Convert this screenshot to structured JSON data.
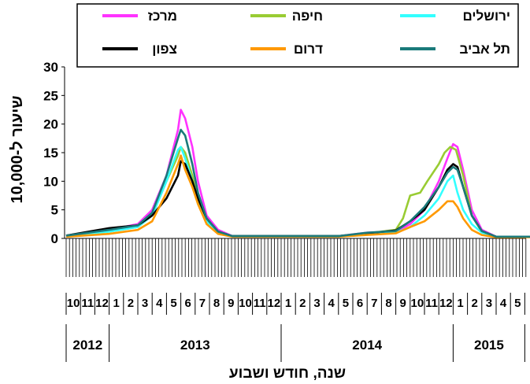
{
  "chart_data": {
    "type": "line",
    "xlabel": "שנה, חודש ושבוע",
    "ylabel": "שיעור ל-10,000",
    "ylim": [
      0,
      30
    ],
    "yticks": [
      0,
      5,
      10,
      15,
      20,
      25,
      30
    ],
    "grid": false,
    "legend_position": "top",
    "months": [
      "10",
      "11",
      "12",
      "1",
      "2",
      "3",
      "4",
      "5",
      "6",
      "7",
      "8",
      "9",
      "10",
      "11",
      "12",
      "1",
      "2",
      "3",
      "4",
      "5",
      "6",
      "7",
      "8",
      "9",
      "10",
      "11",
      "12",
      "1",
      "2",
      "3",
      "4",
      "5"
    ],
    "years": [
      {
        "label": "2012",
        "from_month": 0,
        "to_month": 2
      },
      {
        "label": "2013",
        "from_month": 3,
        "to_month": 14
      },
      {
        "label": "2014",
        "from_month": 15,
        "to_month": 26
      },
      {
        "label": "2015",
        "from_month": 27,
        "to_month": 31
      }
    ],
    "series": [
      {
        "name": "מרכז",
        "color": "#ff33ff",
        "points": [
          [
            0,
            0.5
          ],
          [
            3,
            1.5
          ],
          [
            5,
            2.5
          ],
          [
            6,
            5
          ],
          [
            7,
            11
          ],
          [
            7.8,
            19
          ],
          [
            8,
            22.5
          ],
          [
            8.3,
            21
          ],
          [
            8.8,
            16
          ],
          [
            9.2,
            10
          ],
          [
            9.8,
            4
          ],
          [
            10.6,
            1.5
          ],
          [
            11.6,
            0.4
          ],
          [
            14,
            0.4
          ],
          [
            19,
            0.4
          ],
          [
            21,
            1
          ],
          [
            23,
            1.2
          ],
          [
            24,
            2.5
          ],
          [
            25,
            5
          ],
          [
            26,
            10
          ],
          [
            26.6,
            14
          ],
          [
            27,
            16.5
          ],
          [
            27.3,
            16
          ],
          [
            27.7,
            12
          ],
          [
            28.3,
            5
          ],
          [
            29,
            1.5
          ],
          [
            30,
            0.3
          ],
          [
            37,
            0.3
          ],
          [
            40,
            1.5
          ],
          [
            42,
            2.2
          ],
          [
            43,
            3
          ],
          [
            44,
            5
          ],
          [
            44.5,
            7
          ]
        ]
      },
      {
        "name": "חיפה",
        "color": "#99cc33",
        "points": [
          [
            0,
            0.5
          ],
          [
            3,
            1.2
          ],
          [
            5,
            2
          ],
          [
            6,
            4
          ],
          [
            7,
            10
          ],
          [
            7.8,
            14.5
          ],
          [
            8,
            16
          ],
          [
            8.3,
            15
          ],
          [
            8.8,
            11
          ],
          [
            9.2,
            7
          ],
          [
            9.8,
            3
          ],
          [
            10.6,
            1
          ],
          [
            11.6,
            0.4
          ],
          [
            14,
            0.4
          ],
          [
            19,
            0.4
          ],
          [
            21,
            0.9
          ],
          [
            23,
            1.5
          ],
          [
            23.5,
            3.5
          ],
          [
            24,
            7.5
          ],
          [
            24.7,
            8
          ],
          [
            25.2,
            10
          ],
          [
            26,
            13
          ],
          [
            26.4,
            15
          ],
          [
            26.8,
            16
          ],
          [
            27.2,
            15.5
          ],
          [
            27.7,
            11
          ],
          [
            28.3,
            4
          ],
          [
            29,
            1.2
          ],
          [
            30,
            0.3
          ],
          [
            37,
            0.3
          ],
          [
            40,
            1
          ],
          [
            42,
            2
          ],
          [
            43,
            2.5
          ],
          [
            44,
            4
          ],
          [
            44.5,
            5
          ]
        ]
      },
      {
        "name": "ירושלים",
        "color": "#33ffff",
        "points": [
          [
            0,
            0.5
          ],
          [
            3,
            1.2
          ],
          [
            5,
            2
          ],
          [
            6,
            4
          ],
          [
            7,
            10
          ],
          [
            7.8,
            15.5
          ],
          [
            8,
            16
          ],
          [
            8.3,
            14
          ],
          [
            8.8,
            10
          ],
          [
            9.2,
            6
          ],
          [
            9.8,
            3
          ],
          [
            10.6,
            1
          ],
          [
            11.6,
            0.4
          ],
          [
            14,
            0.4
          ],
          [
            19,
            0.4
          ],
          [
            21,
            0.8
          ],
          [
            23,
            1
          ],
          [
            24,
            2
          ],
          [
            25,
            4
          ],
          [
            26,
            7
          ],
          [
            26.6,
            10
          ],
          [
            27,
            11
          ],
          [
            27.3,
            8
          ],
          [
            27.7,
            5
          ],
          [
            28.3,
            2.5
          ],
          [
            29,
            1
          ],
          [
            30,
            0.3
          ],
          [
            37,
            0.3
          ],
          [
            39,
            1
          ],
          [
            41,
            1.6
          ],
          [
            42,
            2.8
          ],
          [
            43,
            2.5
          ],
          [
            44,
            3.5
          ],
          [
            44.5,
            4
          ]
        ]
      },
      {
        "name": "צפון",
        "color": "#000000",
        "points": [
          [
            0,
            0.5
          ],
          [
            3,
            1.8
          ],
          [
            5,
            2.3
          ],
          [
            6,
            4
          ],
          [
            7,
            7
          ],
          [
            7.8,
            11
          ],
          [
            8,
            13.5
          ],
          [
            8.3,
            13
          ],
          [
            8.8,
            10
          ],
          [
            9.2,
            7
          ],
          [
            9.8,
            3.5
          ],
          [
            10.6,
            1.2
          ],
          [
            11.6,
            0.4
          ],
          [
            14,
            0.4
          ],
          [
            19,
            0.4
          ],
          [
            21,
            0.9
          ],
          [
            23,
            1.4
          ],
          [
            24,
            3
          ],
          [
            25,
            5
          ],
          [
            26,
            9
          ],
          [
            26.6,
            12
          ],
          [
            27,
            13
          ],
          [
            27.3,
            12.5
          ],
          [
            27.7,
            9
          ],
          [
            28.3,
            4
          ],
          [
            29,
            1.3
          ],
          [
            30,
            0.3
          ],
          [
            37,
            0.3
          ],
          [
            40,
            1
          ],
          [
            42,
            1.8
          ],
          [
            43,
            2.8
          ],
          [
            44,
            3.2
          ],
          [
            44.5,
            3.5
          ]
        ]
      },
      {
        "name": "דרום",
        "color": "#ff9900",
        "points": [
          [
            0,
            0.3
          ],
          [
            3,
            0.8
          ],
          [
            5,
            1.5
          ],
          [
            6,
            3
          ],
          [
            7,
            8
          ],
          [
            7.8,
            13
          ],
          [
            8,
            14.5
          ],
          [
            8.3,
            12
          ],
          [
            8.8,
            9
          ],
          [
            9.2,
            6
          ],
          [
            9.8,
            2.5
          ],
          [
            10.6,
            0.8
          ],
          [
            11.6,
            0.3
          ],
          [
            14,
            0.3
          ],
          [
            19,
            0.3
          ],
          [
            21,
            0.6
          ],
          [
            23,
            0.9
          ],
          [
            24,
            2
          ],
          [
            25,
            3
          ],
          [
            26,
            5
          ],
          [
            26.6,
            6.5
          ],
          [
            27,
            6.5
          ],
          [
            27.3,
            5.5
          ],
          [
            27.7,
            3.5
          ],
          [
            28.3,
            1.5
          ],
          [
            29,
            0.6
          ],
          [
            30,
            0.2
          ],
          [
            37,
            0.2
          ],
          [
            40,
            0.6
          ],
          [
            42,
            1
          ],
          [
            43,
            1.5
          ],
          [
            44,
            2.5
          ],
          [
            44.5,
            3.5
          ]
        ]
      },
      {
        "name": "תל אביב",
        "color": "#1a7a7a",
        "points": [
          [
            0,
            0.5
          ],
          [
            3,
            1.5
          ],
          [
            5,
            2.3
          ],
          [
            6,
            4.5
          ],
          [
            7,
            11
          ],
          [
            7.8,
            17.5
          ],
          [
            8,
            19
          ],
          [
            8.3,
            18
          ],
          [
            8.8,
            13
          ],
          [
            9.2,
            8
          ],
          [
            9.8,
            3.5
          ],
          [
            10.6,
            1.2
          ],
          [
            11.6,
            0.4
          ],
          [
            14,
            0.4
          ],
          [
            19,
            0.4
          ],
          [
            21,
            1
          ],
          [
            23,
            1.3
          ],
          [
            24,
            3
          ],
          [
            25,
            5.5
          ],
          [
            26,
            9
          ],
          [
            26.6,
            11.5
          ],
          [
            27,
            12.5
          ],
          [
            27.3,
            12
          ],
          [
            27.7,
            9
          ],
          [
            28.3,
            4
          ],
          [
            29,
            1.3
          ],
          [
            30,
            0.3
          ],
          [
            37,
            0.3
          ],
          [
            40,
            1
          ],
          [
            42,
            2
          ],
          [
            43,
            3
          ],
          [
            44,
            4.5
          ],
          [
            44.5,
            6
          ]
        ]
      }
    ]
  }
}
